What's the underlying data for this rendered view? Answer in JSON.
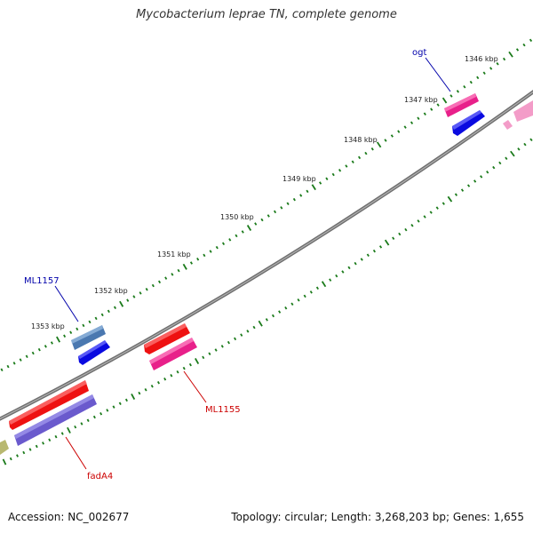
{
  "title": "Mycobacterium leprae TN, complete genome",
  "footer": {
    "accession": "Accession: NC_002677",
    "summary": "Topology: circular; Length: 3,268,203 bp; Genes: 1,655"
  },
  "ticks": [
    "1346 kbp",
    "1347 kbp",
    "1348 kbp",
    "1349 kbp",
    "1350 kbp",
    "1351 kbp",
    "1352 kbp",
    "1353 kbp"
  ],
  "genes": [
    {
      "label": "ogt",
      "color": "#0000aa"
    },
    {
      "label": "ML1157",
      "color": "#0000aa"
    },
    {
      "label": "ML1155",
      "color": "#cc0000"
    },
    {
      "label": "fadA4",
      "color": "#cc0000"
    }
  ],
  "colors": {
    "backbone": "#808080",
    "tick": "#1a7a1a",
    "red": "#ee1111",
    "pink": "#e8208a",
    "blue": "#0a0ae0",
    "steelblue": "#4a78b0",
    "purple": "#6a5acd",
    "olive": "#b8b870",
    "lightpink": "#f39cc8"
  }
}
